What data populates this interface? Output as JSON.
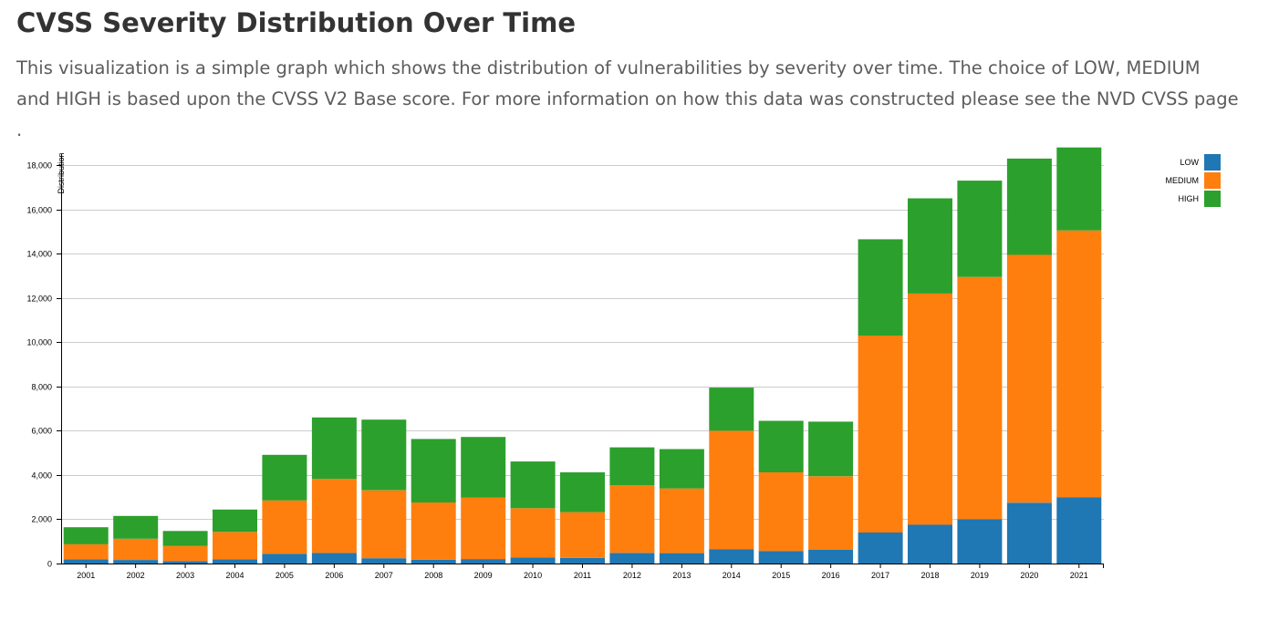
{
  "page": {
    "title": "CVSS Severity Distribution Over Time",
    "intro_text": "This visualization is a simple graph which shows the distribution of vulnerabilities by severity over time. The choice of LOW, MEDIUM and HIGH is based upon the CVSS V2 Base score. For more information on how this data was constructed please see the ",
    "intro_link": "NVD CVSS page",
    "intro_end": " ."
  },
  "colors": {
    "LOW": "#1f77b4",
    "MEDIUM": "#ff7f0e",
    "HIGH": "#2ca02c",
    "grid": "#cccccc",
    "axis": "#000000"
  },
  "chart_data": {
    "type": "bar",
    "stacked": true,
    "ylabel": "Distribution",
    "ylim": [
      0,
      18500
    ],
    "yticks": [
      0,
      2000,
      4000,
      6000,
      8000,
      10000,
      12000,
      14000,
      16000,
      18000
    ],
    "ytick_labels": [
      "0",
      "2,000",
      "4,000",
      "6,000",
      "8,000",
      "10,000",
      "12,000",
      "14,000",
      "16,000",
      "18,000"
    ],
    "grid": true,
    "legend_position": "top-right",
    "categories": [
      "2001",
      "2002",
      "2003",
      "2004",
      "2005",
      "2006",
      "2007",
      "2008",
      "2009",
      "2010",
      "2011",
      "2012",
      "2013",
      "2014",
      "2015",
      "2016",
      "2017",
      "2018",
      "2019",
      "2020",
      "2021"
    ],
    "series": [
      {
        "name": "LOW",
        "values": [
          190,
          160,
          110,
          190,
          440,
          480,
          240,
          170,
          200,
          270,
          250,
          480,
          470,
          640,
          570,
          620,
          1400,
          1750,
          2000,
          2750,
          3000
        ]
      },
      {
        "name": "MEDIUM",
        "values": [
          680,
          960,
          680,
          1240,
          2410,
          3340,
          3070,
          2590,
          2790,
          2230,
          2070,
          3050,
          2920,
          5360,
          3550,
          3320,
          8900,
          10450,
          10950,
          11200,
          12050
        ]
      },
      {
        "name": "HIGH",
        "values": [
          770,
          1030,
          680,
          1010,
          2060,
          2780,
          3190,
          2870,
          2730,
          2110,
          1800,
          1720,
          1780,
          1950,
          2330,
          2470,
          4350,
          4300,
          4350,
          4350,
          3750
        ]
      }
    ]
  }
}
